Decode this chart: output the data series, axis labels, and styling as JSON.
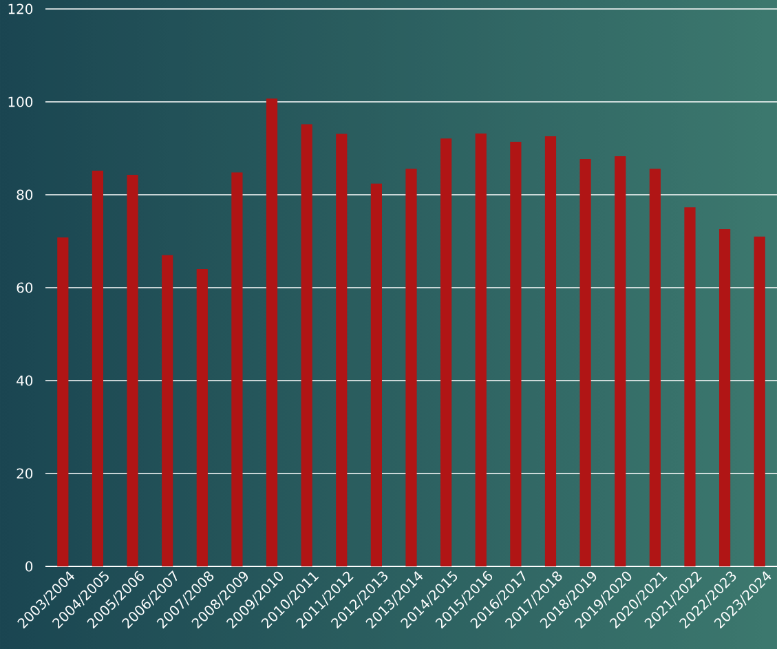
{
  "chart_data": {
    "type": "bar",
    "categories": [
      "2003/2004",
      "2004/2005",
      "2005/2006",
      "2006/2007",
      "2007/2008",
      "2008/2009",
      "2009/2010",
      "2010/2011",
      "2011/2012",
      "2012/2013",
      "2013/2014",
      "2014/2015",
      "2015/2016",
      "2016/2017",
      "2017/2018",
      "2018/2019",
      "2019/2020",
      "2020/2021",
      "2021/2022",
      "2022/2023",
      "2023/2024"
    ],
    "values": [
      70.8,
      85.2,
      84.3,
      67.0,
      64.0,
      84.8,
      100.7,
      95.2,
      93.1,
      82.4,
      85.6,
      92.1,
      93.2,
      91.4,
      92.6,
      87.7,
      88.3,
      85.6,
      77.3,
      72.6,
      71.0
    ],
    "color": "#b01515",
    "ylim": [
      0,
      120
    ],
    "yticks": [
      0,
      20,
      40,
      60,
      80,
      100,
      120
    ],
    "grid": "y"
  }
}
